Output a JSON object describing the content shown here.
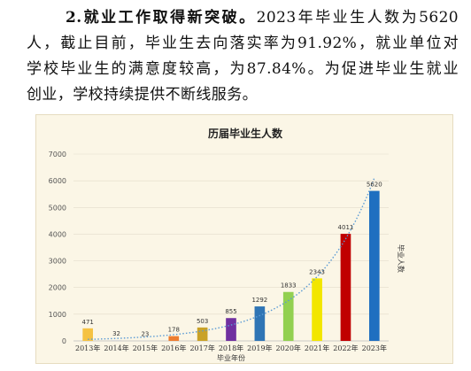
{
  "document": {
    "lead": "2.就业工作取得新突破。",
    "line1_rest": "2023年毕业生人数为5620",
    "line2": "人，截止目前，毕业生去向落实率为91.92%，就业单位对",
    "line3": "学校毕业生的满意度较高，为87.84%。为促进毕业生就业",
    "line4": "创业，学校持续提供不断线服务。"
  },
  "chart_data": {
    "type": "bar",
    "title": "历届毕业生人数",
    "xlabel": "毕业年份",
    "ylabel": "毕业人数",
    "categories": [
      "2013年",
      "2014年",
      "2015年",
      "2016年",
      "2017年",
      "2018年",
      "2019年",
      "2020年",
      "2021年",
      "2022年",
      "2023年"
    ],
    "values": [
      471,
      32,
      23,
      178,
      503,
      855,
      1292,
      1833,
      2343,
      4011,
      5620
    ],
    "bar_colors": [
      "#f5c242",
      "#d9d9d9",
      "#d9d9d9",
      "#ed7d31",
      "#c9a227",
      "#7030a0",
      "#2f75b5",
      "#92d050",
      "#f2e600",
      "#c00000",
      "#1f6fc0"
    ],
    "ylim": [
      0,
      7000
    ],
    "yticks": [
      0,
      1000,
      2000,
      3000,
      4000,
      5000,
      6000,
      7000
    ],
    "grid": true,
    "trendline": "exponential",
    "trendline_color": "#5b9bd5"
  }
}
